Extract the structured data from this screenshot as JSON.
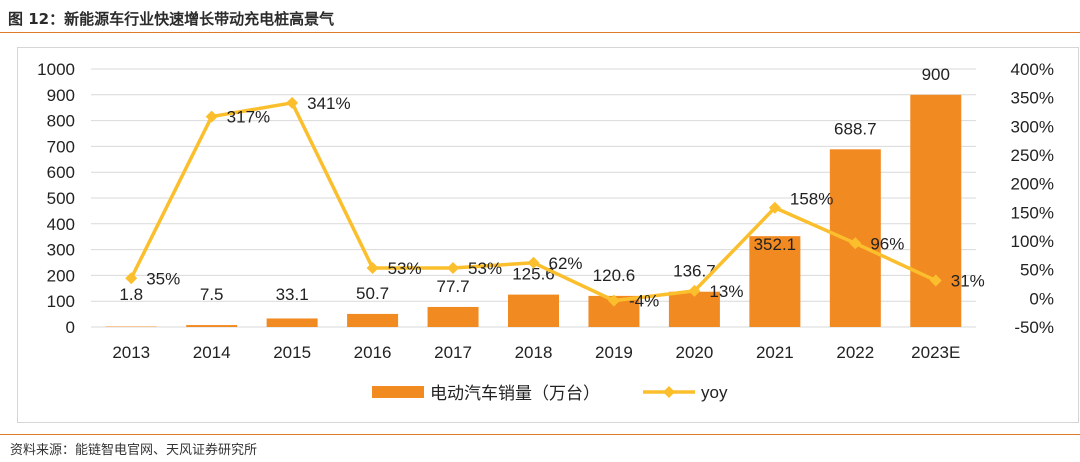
{
  "title": "图 12：新能源车行业快速增长带动充电桩高景气",
  "source": "资料来源：能链智电官网、天风证券研究所",
  "colors": {
    "bar": "#f28a22",
    "line": "#fbbf2d",
    "grid": "#d9d9d9",
    "axis": "#222222",
    "accent": "#e07b27"
  },
  "chart_data": {
    "type": "bar",
    "categories": [
      "2013",
      "2014",
      "2015",
      "2016",
      "2017",
      "2018",
      "2019",
      "2020",
      "2021",
      "2022",
      "2023E"
    ],
    "series": [
      {
        "name": "电动汽车销量（万台）",
        "type": "bar",
        "axis": "left",
        "values": [
          1.8,
          7.5,
          33.1,
          50.7,
          77.7,
          125.6,
          120.6,
          136.7,
          352.1,
          688.7,
          900
        ],
        "labels": [
          "1.8",
          "7.5",
          "33.1",
          "50.7",
          "77.7",
          "125.6",
          "120.6",
          "136.7",
          "352.1",
          "688.7",
          "900"
        ]
      },
      {
        "name": "yoy",
        "type": "line",
        "axis": "right",
        "values": [
          35,
          317,
          341,
          53,
          53,
          62,
          -4,
          13,
          158,
          96,
          31
        ],
        "labels": [
          "35%",
          "317%",
          "341%",
          "53%",
          "53%",
          "62%",
          "-4%",
          "13%",
          "158%",
          "96%",
          "31%"
        ]
      }
    ],
    "left_axis": {
      "min": 0,
      "max": 1000,
      "ticks": [
        "0",
        "100",
        "200",
        "300",
        "400",
        "500",
        "600",
        "700",
        "800",
        "900",
        "1000"
      ]
    },
    "right_axis": {
      "min": -50,
      "max": 400,
      "ticks": [
        "-50%",
        "0%",
        "50%",
        "100%",
        "150%",
        "200%",
        "250%",
        "300%",
        "350%",
        "400%"
      ]
    },
    "legend": {
      "position": "bottom",
      "items": [
        "电动汽车销量（万台）",
        "yoy"
      ]
    },
    "grid": true
  }
}
